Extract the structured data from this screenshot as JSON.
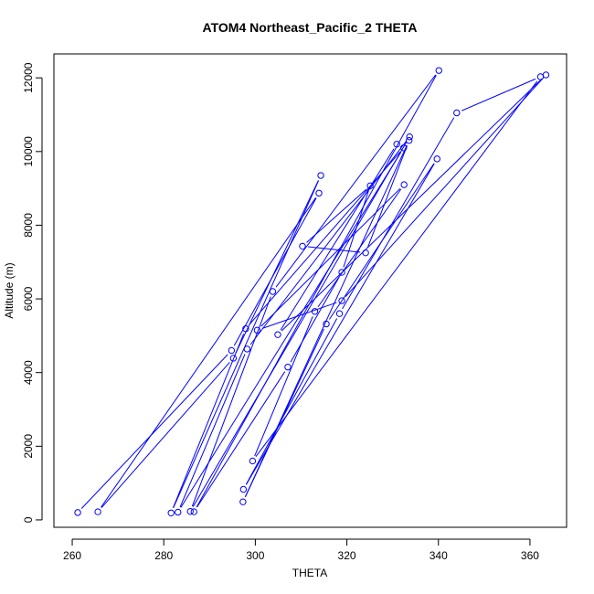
{
  "chart_data": {
    "type": "line",
    "title": "ATOM4 Northeast_Pacific_2 THETA",
    "xlabel": "THETA",
    "ylabel": "Altitude (m)",
    "xlim": [
      256,
      368
    ],
    "ylim": [
      -200,
      12650
    ],
    "xticks": [
      260,
      280,
      300,
      320,
      340,
      360
    ],
    "yticks": [
      0,
      2000,
      4000,
      6000,
      8000,
      10000,
      12000
    ],
    "grid": false,
    "colors": {
      "series": "#0000ff"
    },
    "series": [
      {
        "points": [
          {
            "x": 261.2,
            "y": 200
          },
          {
            "x": 294.8,
            "y": 4600
          },
          {
            "x": 313.9,
            "y": 8870
          },
          {
            "x": 265.6,
            "y": 220
          },
          {
            "x": 295.2,
            "y": 4390
          },
          {
            "x": 314.3,
            "y": 9350
          },
          {
            "x": 281.6,
            "y": 190
          },
          {
            "x": 297.9,
            "y": 5190
          },
          {
            "x": 332.4,
            "y": 10100
          },
          {
            "x": 283.1,
            "y": 210
          },
          {
            "x": 298.2,
            "y": 4640
          },
          {
            "x": 333.7,
            "y": 10400
          },
          {
            "x": 285.8,
            "y": 230
          },
          {
            "x": 303.8,
            "y": 6200
          },
          {
            "x": 340.1,
            "y": 12200
          },
          {
            "x": 286.6,
            "y": 220
          },
          {
            "x": 307.1,
            "y": 4150
          },
          {
            "x": 318.9,
            "y": 6720
          },
          {
            "x": 325.1,
            "y": 9070
          },
          {
            "x": 310.3,
            "y": 7430
          },
          {
            "x": 324.1,
            "y": 7250
          },
          {
            "x": 333.6,
            "y": 10300
          },
          {
            "x": 297.3,
            "y": 490
          },
          {
            "x": 315.5,
            "y": 5320
          },
          {
            "x": 339.7,
            "y": 9800
          },
          {
            "x": 297.4,
            "y": 830
          },
          {
            "x": 318.4,
            "y": 5600
          },
          {
            "x": 344.0,
            "y": 11050
          },
          {
            "x": 362.3,
            "y": 12030
          },
          {
            "x": 299.4,
            "y": 1600
          },
          {
            "x": 313.0,
            "y": 5660
          },
          {
            "x": 332.5,
            "y": 9100
          },
          {
            "x": 300.4,
            "y": 5150
          },
          {
            "x": 318.9,
            "y": 5950
          },
          {
            "x": 363.5,
            "y": 12080
          },
          {
            "x": 304.9,
            "y": 5030
          },
          {
            "x": 330.9,
            "y": 10200
          }
        ]
      }
    ]
  }
}
